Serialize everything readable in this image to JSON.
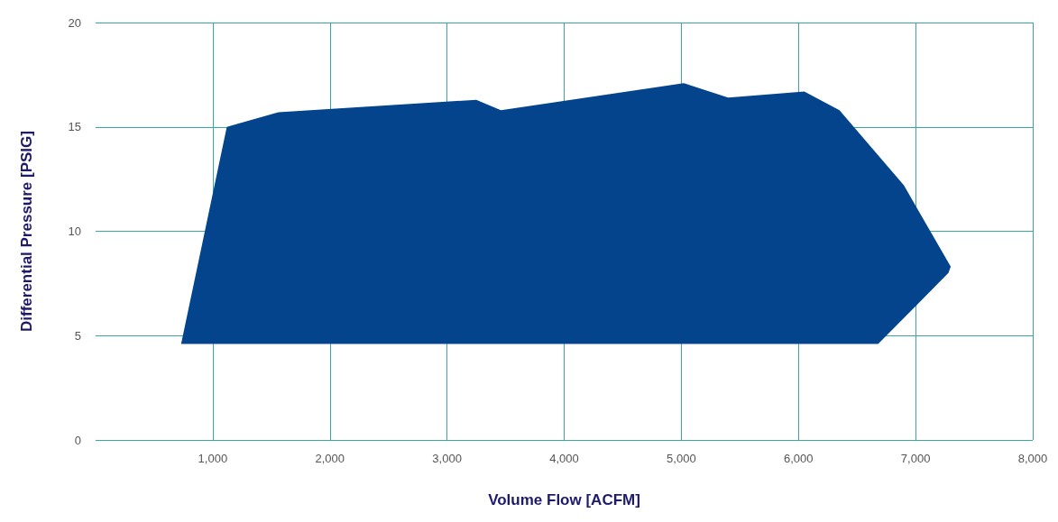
{
  "chart_data": {
    "type": "area",
    "xlabel": "Volume Flow [ACFM]",
    "ylabel": "Differential Pressure [PSIG]",
    "x": [
      730,
      1120,
      1560,
      3250,
      3460,
      5020,
      5400,
      6050,
      6350,
      6900,
      7300,
      7280,
      6680
    ],
    "series": [
      {
        "color": "#03448c",
        "values": [
          4.6,
          15,
          15.7,
          16.3,
          15.8,
          17.1,
          16.4,
          16.7,
          15.8,
          12.2,
          8.3,
          8.0,
          4.6
        ]
      }
    ],
    "xlim": [
      0,
      8000
    ],
    "xticks": [
      {
        "value": 1000,
        "label": "1,000"
      },
      {
        "value": 2000,
        "label": "2,000"
      },
      {
        "value": 3000,
        "label": "3,000"
      },
      {
        "value": 4000,
        "label": "4,000"
      },
      {
        "value": 5000,
        "label": "5,000"
      },
      {
        "value": 6000,
        "label": "6,000"
      },
      {
        "value": 7000,
        "label": "7,000"
      },
      {
        "value": 8000,
        "label": "8,000"
      }
    ],
    "ylim": [
      0,
      20
    ],
    "yticks": [
      0,
      5,
      10,
      15,
      20
    ],
    "grid": true
  }
}
